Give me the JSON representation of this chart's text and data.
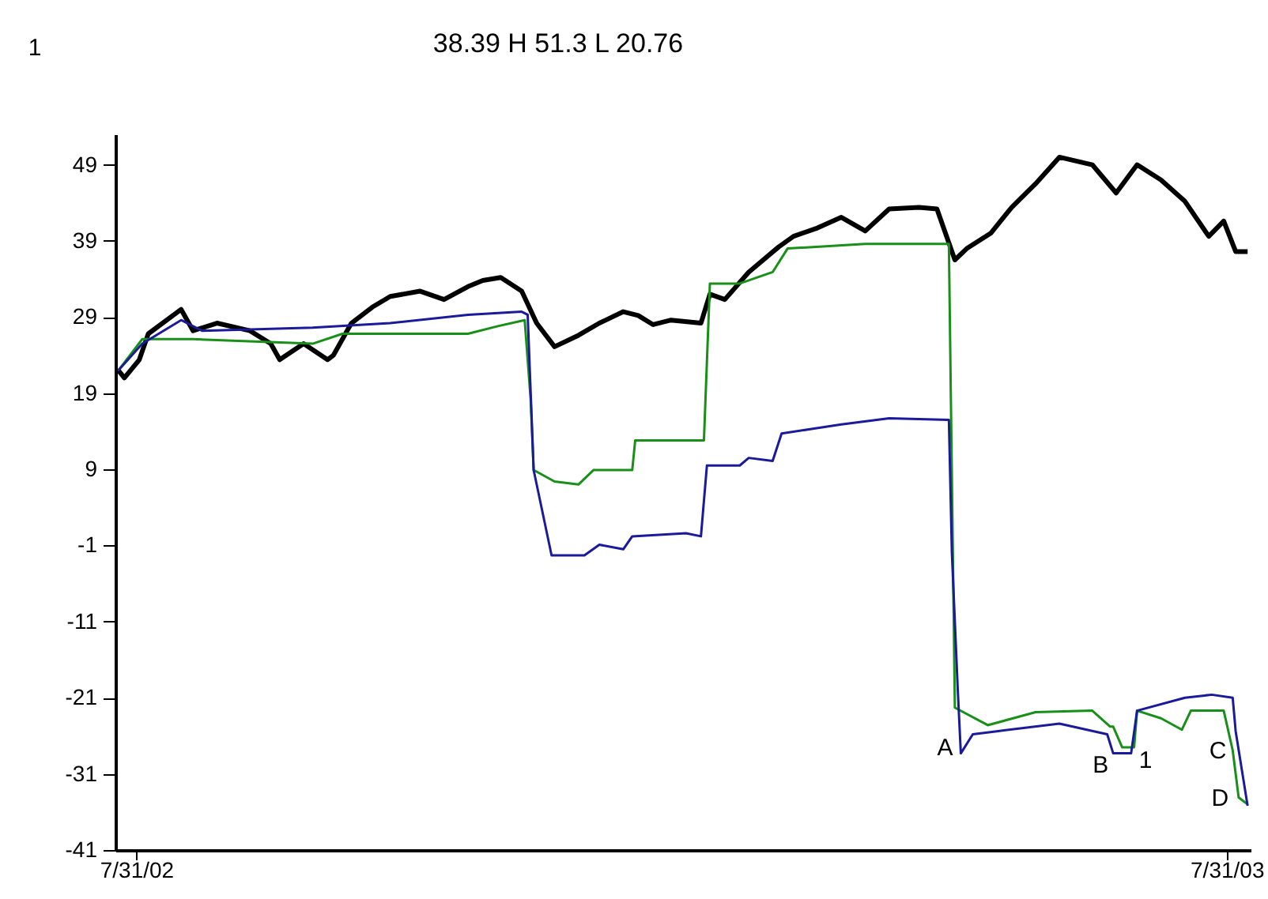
{
  "chart_data": {
    "type": "line",
    "title": "38.39   H 51.3   L 20.76",
    "xlim": [
      "2002-07-24",
      "2003-08-08"
    ],
    "xticks": [
      {
        "value": "2002-07-31",
        "label": "7/31/02"
      },
      {
        "value": "2003-07-31",
        "label": "7/31/03"
      }
    ],
    "ylim": [
      -41,
      53
    ],
    "yticks": [
      -41,
      -31,
      -21,
      -11,
      -1,
      9,
      19,
      29,
      39,
      49
    ],
    "grid": false,
    "marker": "none",
    "line_style": "solid",
    "series": [
      {
        "color": "#000000",
        "x": [
          "2002-07-25",
          "2002-07-27",
          "2002-08-01",
          "2002-08-04",
          "2002-08-15",
          "2002-08-19",
          "2002-08-27",
          "2002-09-07",
          "2002-09-14",
          "2002-09-17",
          "2002-09-25",
          "2002-10-03",
          "2002-10-05",
          "2002-10-11",
          "2002-10-18",
          "2002-10-24",
          "2002-11-03",
          "2002-11-11",
          "2002-11-19",
          "2002-11-24",
          "2002-11-30",
          "2002-12-07",
          "2002-12-12",
          "2002-12-18",
          "2002-12-26",
          "2003-01-02",
          "2003-01-10",
          "2003-01-15",
          "2003-01-20",
          "2003-01-26",
          "2003-02-05",
          "2003-02-08",
          "2003-02-13",
          "2003-02-21",
          "2003-03-03",
          "2003-03-08",
          "2003-03-16",
          "2003-03-24",
          "2003-04-01",
          "2003-04-09",
          "2003-04-19",
          "2003-04-25",
          "2003-05-01",
          "2003-05-05",
          "2003-05-13",
          "2003-05-20",
          "2003-05-28",
          "2003-06-05",
          "2003-06-16",
          "2003-06-24",
          "2003-07-01",
          "2003-07-09",
          "2003-07-17",
          "2003-07-25",
          "2003-07-30",
          "2003-08-03",
          "2003-08-07"
        ],
        "values": [
          22,
          21,
          23.4,
          26.8,
          30,
          27.2,
          28.2,
          27.2,
          25.5,
          23.4,
          25.5,
          23.4,
          24,
          28.2,
          30.3,
          31.7,
          32.4,
          31.3,
          33,
          33.8,
          34.2,
          32.4,
          28.2,
          25.1,
          26.6,
          28.2,
          29.7,
          29.2,
          28,
          28.6,
          28.2,
          32,
          31.3,
          34.9,
          38.2,
          39.6,
          40.7,
          42.1,
          40.3,
          43.2,
          43.4,
          43.2,
          36.5,
          38,
          40,
          43.4,
          46.5,
          50,
          49,
          45.3,
          49,
          47,
          44.2,
          39.6,
          41.6,
          37.6,
          37.6
        ]
      },
      {
        "color": "#189018",
        "x": [
          "2002-07-25",
          "2002-08-02",
          "2002-08-19",
          "2002-09-28",
          "2002-10-08",
          "2002-11-19",
          "2002-11-29",
          "2002-12-08",
          "2002-12-10",
          "2002-12-11",
          "2002-12-18",
          "2002-12-26",
          "2002-12-31",
          "2003-01-10",
          "2003-01-13",
          "2003-01-14",
          "2003-02-06",
          "2003-02-08",
          "2003-02-18",
          "2003-03-01",
          "2003-03-06",
          "2003-04-01",
          "2003-04-29",
          "2003-05-01",
          "2003-05-12",
          "2003-05-28",
          "2003-06-16",
          "2003-06-22",
          "2003-06-23",
          "2003-06-26",
          "2003-06-30",
          "2003-07-01",
          "2003-07-09",
          "2003-07-16",
          "2003-07-19",
          "2003-07-30",
          "2003-08-02",
          "2003-08-04",
          "2003-08-07"
        ],
        "values": [
          22,
          26.1,
          26.1,
          25.5,
          26.8,
          26.8,
          27.8,
          28.6,
          18.2,
          8.9,
          7.4,
          7,
          8.9,
          8.9,
          8.9,
          12.8,
          12.8,
          33.4,
          33.4,
          34.9,
          38,
          38.6,
          38.6,
          -22.3,
          -24.6,
          -22.9,
          -22.7,
          -24.8,
          -24.8,
          -27.5,
          -27.5,
          -22.7,
          -23.7,
          -25.2,
          -22.7,
          -22.7,
          -27.9,
          -34.1,
          -35
        ]
      },
      {
        "color": "#1a1a9a",
        "x": [
          "2002-07-25",
          "2002-08-02",
          "2002-08-15",
          "2002-08-22",
          "2002-09-28",
          "2002-10-24",
          "2002-11-19",
          "2002-12-07",
          "2002-12-09",
          "2002-12-11",
          "2002-12-17",
          "2002-12-28",
          "2003-01-02",
          "2003-01-10",
          "2003-01-13",
          "2003-01-31",
          "2003-02-05",
          "2003-02-07",
          "2003-02-18",
          "2003-02-21",
          "2003-03-01",
          "2003-03-04",
          "2003-03-14",
          "2003-03-24",
          "2003-04-09",
          "2003-04-29",
          "2003-04-30",
          "2003-05-02",
          "2003-05-03",
          "2003-05-07",
          "2003-05-15",
          "2003-06-05",
          "2003-06-21",
          "2003-06-23",
          "2003-06-29",
          "2003-07-01",
          "2003-07-17",
          "2003-07-26",
          "2003-08-02",
          "2003-08-03",
          "2003-08-07"
        ],
        "values": [
          22,
          25.5,
          28.6,
          27.2,
          27.6,
          28.2,
          29.3,
          29.7,
          29.3,
          8.9,
          -2.3,
          -2.3,
          -0.9,
          -1.5,
          0.2,
          0.6,
          0.2,
          9.5,
          9.5,
          10.5,
          10.1,
          13.7,
          14.3,
          14.9,
          15.7,
          15.5,
          -1.9,
          -20.2,
          -28.3,
          -25.8,
          -25.4,
          -24.4,
          -25.8,
          -28.3,
          -28.3,
          -22.7,
          -21,
          -20.6,
          -21,
          -25.4,
          -35.2
        ]
      }
    ],
    "annotations": [
      "1",
      {
        "text": "A",
        "x": "2003-05-03",
        "y": -28.3
      },
      {
        "text": "B",
        "x": "2003-06-23",
        "y": -28.3
      },
      {
        "text": "1",
        "x": "2003-06-29",
        "y": -28.3
      },
      {
        "text": "C",
        "x": "2003-08-02",
        "y": -27.9
      },
      {
        "text": "D",
        "x": "2003-08-07",
        "y": -35.2
      }
    ]
  }
}
